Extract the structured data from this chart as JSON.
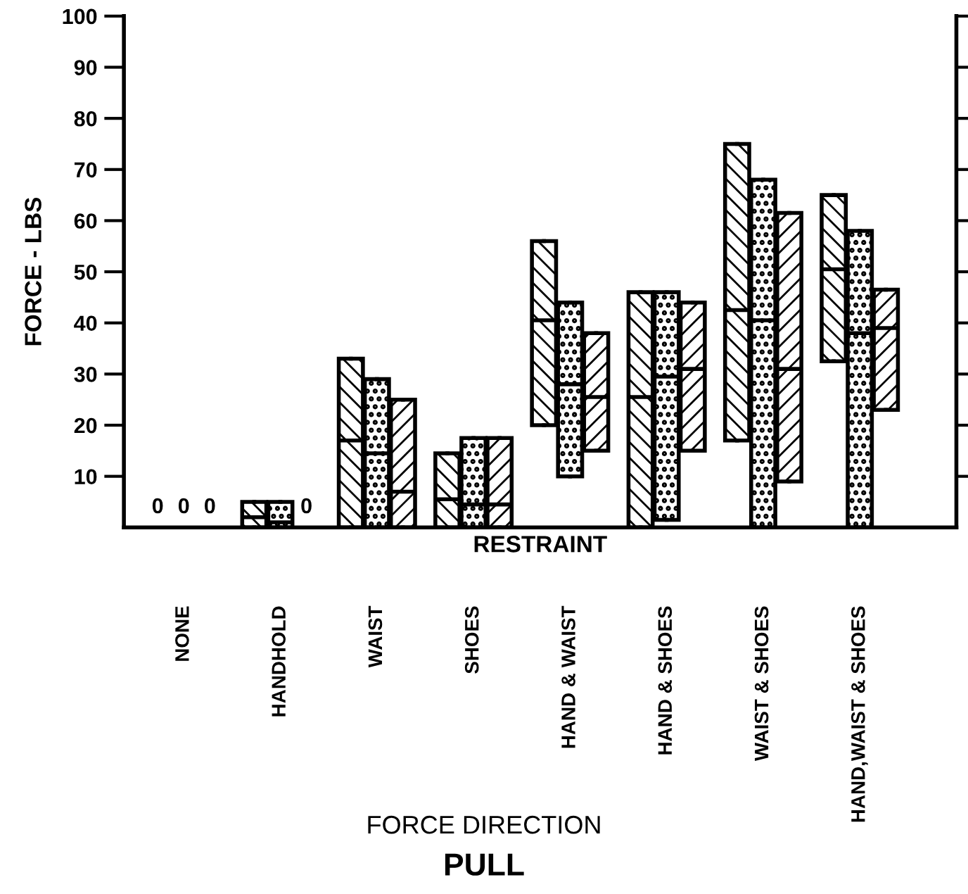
{
  "chart_data": {
    "type": "box",
    "ylabel": "FORCE - LBS",
    "xlabel": "RESTRAINT",
    "categories": [
      "NONE",
      "HANDHOLD",
      "WAIST",
      "SHOES",
      "HAND & WAIST",
      "HAND & SHOES",
      "WAIST & SHOES",
      "HAND,WAIST & SHOES"
    ],
    "series": [
      {
        "color": "#000000",
        "value_labels": [
          "0",
          null,
          null,
          null,
          null,
          null,
          null,
          null
        ],
        "boxes": [
          null,
          {
            "low": 0,
            "q1": 0,
            "median": 2,
            "q3": 5,
            "high": 5
          },
          {
            "low": 0,
            "q1": 0,
            "median": 17,
            "q3": 33,
            "high": 33
          },
          {
            "low": 0,
            "q1": 0,
            "median": 5.5,
            "q3": 14.5,
            "high": 14.5
          },
          {
            "low": 20,
            "q1": 20,
            "median": 40.5,
            "q3": 56,
            "high": 56
          },
          {
            "low": 0,
            "q1": 0,
            "median": 25.5,
            "q3": 46,
            "high": 46
          },
          {
            "low": 17,
            "q1": 17,
            "median": 42.5,
            "q3": 75,
            "high": 75
          },
          {
            "low": 32.5,
            "q1": 32.5,
            "median": 50.5,
            "q3": 65,
            "high": 65
          }
        ]
      },
      {
        "color": "#000000",
        "value_labels": [
          "0",
          null,
          null,
          null,
          null,
          null,
          null,
          null
        ],
        "boxes": [
          null,
          {
            "low": 0,
            "q1": 0,
            "median": 1,
            "q3": 5,
            "high": 5
          },
          {
            "low": 0,
            "q1": 0,
            "median": 14.5,
            "q3": 29,
            "high": 29
          },
          {
            "low": 0,
            "q1": 0,
            "median": 4.5,
            "q3": 17.5,
            "high": 17.5
          },
          {
            "low": 10,
            "q1": 10,
            "median": 28,
            "q3": 44,
            "high": 44
          },
          {
            "low": 1.5,
            "q1": 1.5,
            "median": 29.5,
            "q3": 46,
            "high": 46
          },
          {
            "low": 0,
            "q1": 0,
            "median": 40.5,
            "q3": 68,
            "high": 68
          },
          {
            "low": 0,
            "q1": 0,
            "median": 38,
            "q3": 58,
            "high": 58
          }
        ]
      },
      {
        "color": "#000000",
        "value_labels": [
          "0",
          "0",
          null,
          null,
          null,
          null,
          null,
          null
        ],
        "boxes": [
          null,
          null,
          {
            "low": 0,
            "q1": 0,
            "median": 7,
            "q3": 25,
            "high": 25
          },
          {
            "low": 0,
            "q1": 0,
            "median": 4.5,
            "q3": 17.5,
            "high": 17.5
          },
          {
            "low": 15,
            "q1": 15,
            "median": 25.5,
            "q3": 38,
            "high": 38
          },
          {
            "low": 15,
            "q1": 15,
            "median": 31,
            "q3": 44,
            "high": 44
          },
          {
            "low": 9,
            "q1": 9,
            "median": 31,
            "q3": 61.5,
            "high": 61.5
          },
          {
            "low": 23,
            "q1": 23,
            "median": 39,
            "q3": 46.5,
            "high": 46.5
          }
        ]
      }
    ],
    "ylim": [
      0,
      100
    ],
    "yticks": [
      10,
      20,
      30,
      40,
      50,
      60,
      70,
      80,
      90,
      100
    ],
    "grid": false,
    "legend": false,
    "annotations": [
      "FORCE DIRECTION",
      "PULL"
    ]
  }
}
